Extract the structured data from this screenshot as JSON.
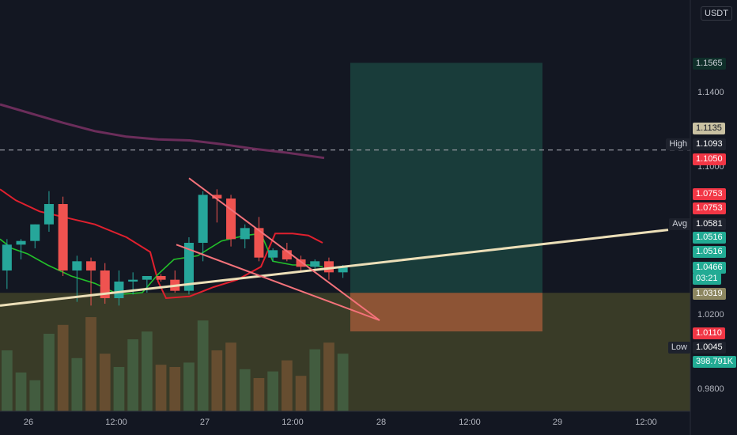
{
  "currency_label": "USDT",
  "chart_data": {
    "type": "candlestick",
    "x_ticks": [
      "26",
      "12:00",
      "27",
      "12:00",
      "28",
      "12:00",
      "29",
      "12:00"
    ],
    "y_ticks": [
      "1.1565",
      "1.1400",
      "1.1135",
      "1.1000",
      "1.0753",
      "1.0516",
      "1.0466",
      "1.0319",
      "1.0200",
      "1.0110",
      "1.0045",
      "0.9800"
    ],
    "price_tags": [
      {
        "value": "1.1565",
        "bg": "#0f2f2a",
        "fg": "#d1d4dc",
        "row": 0
      },
      {
        "value": "1.1135",
        "bg": "#c9c1a2",
        "fg": "#131722",
        "row": 1
      },
      {
        "value": "1.1093",
        "bg": "#1e222d",
        "fg": "#ffffff",
        "row": 2,
        "name": "High"
      },
      {
        "value": "1.1050",
        "bg": "#f23645",
        "fg": "#ffffff",
        "row": 3
      },
      {
        "value": "1.0753",
        "bg": "#f23645",
        "fg": "#ffffff",
        "row": 4
      },
      {
        "value": "1.0753",
        "bg": "#f23645",
        "fg": "#ffffff",
        "row": 5
      },
      {
        "value": "1.0581",
        "bg": "#1e222d",
        "fg": "#ffffff",
        "row": 6,
        "name": "Avg"
      },
      {
        "value": "1.0516",
        "bg": "#22ab94",
        "fg": "#ffffff",
        "row": 7
      },
      {
        "value": "1.0516",
        "bg": "#22ab94",
        "fg": "#ffffff",
        "row": 8
      },
      {
        "value": "1.0466",
        "bg": "#22ab94",
        "fg": "#ffffff",
        "row": 9
      },
      {
        "value": "03:21",
        "bg": "#22ab94",
        "fg": "#ffffff",
        "row": 10
      },
      {
        "value": "1.0319",
        "bg": "#8c8660",
        "fg": "#ffffff",
        "row": 11
      },
      {
        "value": "1.0110",
        "bg": "#f23645",
        "fg": "#ffffff",
        "row": 12
      },
      {
        "value": "1.0045",
        "bg": "#1e222d",
        "fg": "#ffffff",
        "row": 13,
        "name": "Low"
      },
      {
        "value": "398.791K",
        "bg": "#22ab94",
        "fg": "#ffffff",
        "row": 14
      }
    ],
    "candles": [
      {
        "o": 1.044,
        "h": 1.061,
        "l": 1.034,
        "c": 1.058
      },
      {
        "o": 1.058,
        "h": 1.061,
        "l": 1.05,
        "c": 1.06
      },
      {
        "o": 1.06,
        "h": 1.069,
        "l": 1.056,
        "c": 1.069
      },
      {
        "o": 1.069,
        "h": 1.087,
        "l": 1.065,
        "c": 1.08
      },
      {
        "o": 1.08,
        "h": 1.084,
        "l": 1.041,
        "c": 1.044
      },
      {
        "o": 1.044,
        "h": 1.052,
        "l": 1.027,
        "c": 1.049
      },
      {
        "o": 1.049,
        "h": 1.051,
        "l": 1.025,
        "c": 1.044
      },
      {
        "o": 1.044,
        "h": 1.048,
        "l": 1.026,
        "c": 1.029
      },
      {
        "o": 1.029,
        "h": 1.044,
        "l": 1.025,
        "c": 1.038
      },
      {
        "o": 1.038,
        "h": 1.043,
        "l": 1.031,
        "c": 1.039
      },
      {
        "o": 1.039,
        "h": 1.041,
        "l": 1.032,
        "c": 1.041
      },
      {
        "o": 1.041,
        "h": 1.042,
        "l": 1.038,
        "c": 1.039
      },
      {
        "o": 1.039,
        "h": 1.044,
        "l": 1.032,
        "c": 1.033
      },
      {
        "o": 1.033,
        "h": 1.062,
        "l": 1.031,
        "c": 1.059
      },
      {
        "o": 1.059,
        "h": 1.087,
        "l": 1.049,
        "c": 1.085
      },
      {
        "o": 1.085,
        "h": 1.088,
        "l": 1.07,
        "c": 1.083
      },
      {
        "o": 1.083,
        "h": 1.085,
        "l": 1.057,
        "c": 1.061
      },
      {
        "o": 1.061,
        "h": 1.069,
        "l": 1.056,
        "c": 1.067
      },
      {
        "o": 1.067,
        "h": 1.073,
        "l": 1.049,
        "c": 1.051
      },
      {
        "o": 1.051,
        "h": 1.056,
        "l": 1.049,
        "c": 1.055
      },
      {
        "o": 1.055,
        "h": 1.059,
        "l": 1.049,
        "c": 1.05
      },
      {
        "o": 1.05,
        "h": 1.052,
        "l": 1.043,
        "c": 1.046
      },
      {
        "o": 1.046,
        "h": 1.05,
        "l": 1.045,
        "c": 1.049
      },
      {
        "o": 1.049,
        "h": 1.051,
        "l": 1.039,
        "c": 1.043
      },
      {
        "o": 1.043,
        "h": 1.047,
        "l": 1.04,
        "c": 1.046
      }
    ],
    "volume_series": [
      0.55,
      0.35,
      0.28,
      0.7,
      0.78,
      0.48,
      0.85,
      0.52,
      0.4,
      0.65,
      0.72,
      0.42,
      0.4,
      0.44,
      0.82,
      0.55,
      0.62,
      0.38,
      0.3,
      0.36,
      0.46,
      0.32,
      0.56,
      0.62,
      0.52
    ],
    "ma_slow": [
      [
        0,
        1.134
      ],
      [
        40,
        1.129
      ],
      [
        80,
        1.124
      ],
      [
        120,
        1.1195
      ],
      [
        160,
        1.1165
      ],
      [
        200,
        1.115
      ],
      [
        240,
        1.1145
      ],
      [
        280,
        1.1125
      ],
      [
        320,
        1.11
      ],
      [
        360,
        1.108
      ],
      [
        410,
        1.105
      ]
    ],
    "ma_red": [
      [
        0,
        1.088
      ],
      [
        20,
        1.082
      ],
      [
        50,
        1.076
      ],
      [
        80,
        1.073
      ],
      [
        120,
        1.069
      ],
      [
        160,
        1.062
      ],
      [
        190,
        1.054
      ],
      [
        200,
        1.038
      ],
      [
        210,
        1.029
      ],
      [
        240,
        1.03
      ],
      [
        270,
        1.035
      ],
      [
        300,
        1.039
      ],
      [
        330,
        1.046
      ],
      [
        348,
        1.064
      ],
      [
        370,
        1.064
      ],
      [
        390,
        1.063
      ],
      [
        408,
        1.059
      ]
    ],
    "ma_green": [
      [
        0,
        1.061
      ],
      [
        15,
        1.056
      ],
      [
        35,
        1.053
      ],
      [
        60,
        1.047
      ],
      [
        90,
        1.041
      ],
      [
        120,
        1.037
      ],
      [
        150,
        1.031
      ],
      [
        180,
        1.032
      ],
      [
        200,
        1.042
      ],
      [
        220,
        1.05
      ],
      [
        250,
        1.052
      ],
      [
        280,
        1.06
      ],
      [
        310,
        1.063
      ],
      [
        330,
        1.064
      ],
      [
        345,
        1.049
      ],
      [
        370,
        1.047
      ],
      [
        390,
        1.047
      ],
      [
        408,
        1.046
      ]
    ],
    "support_line": [
      [
        0,
        1.025
      ],
      [
        845,
        1.066
      ]
    ],
    "wedge_upper": [
      [
        239,
        1.094
      ],
      [
        480,
        1.017
      ]
    ],
    "wedge_lower": [
      [
        223,
        1.058
      ],
      [
        412,
        1.037
      ]
    ],
    "high_value": 1.1093,
    "position": {
      "target": 1.1565,
      "entry": 1.0319,
      "stop": 1.011
    }
  }
}
